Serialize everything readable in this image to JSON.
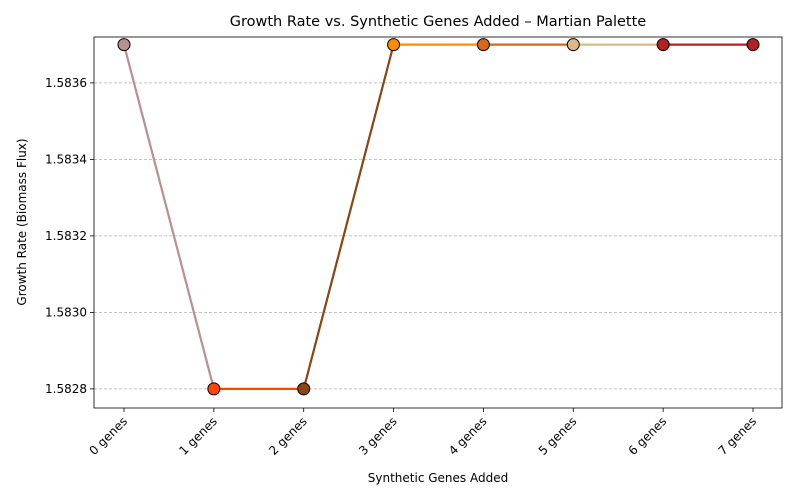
{
  "chart_data": {
    "type": "line",
    "title": "Growth Rate vs. Synthetic Genes Added – Martian Palette",
    "xlabel": "Synthetic Genes Added",
    "ylabel": "Growth Rate (Biomass Flux)",
    "categories": [
      "0 genes",
      "1 genes",
      "2 genes",
      "3 genes",
      "4 genes",
      "5 genes",
      "6 genes",
      "7 genes"
    ],
    "values": [
      1.5837,
      1.5828,
      1.5828,
      1.5837,
      1.5837,
      1.5837,
      1.5837,
      1.5837
    ],
    "segment_colors": [
      "#bc8f8f",
      "#ff4500",
      "#8b4513",
      "#ff8c00",
      "#d2691e",
      "#deb887",
      "#b22222"
    ],
    "point_colors": [
      "#bc8f8f",
      "#ff4500",
      "#8b4513",
      "#ff8c00",
      "#d2691e",
      "#deb887",
      "#b22222",
      "#b22222"
    ],
    "ylim": [
      1.58275,
      1.58372
    ],
    "yticks": [
      1.5828,
      1.583,
      1.5832,
      1.5834,
      1.5836
    ],
    "ytick_labels": [
      "1.5828",
      "1.5830",
      "1.5832",
      "1.5834",
      "1.5836"
    ],
    "grid": "y-dashed",
    "legend": "none"
  }
}
